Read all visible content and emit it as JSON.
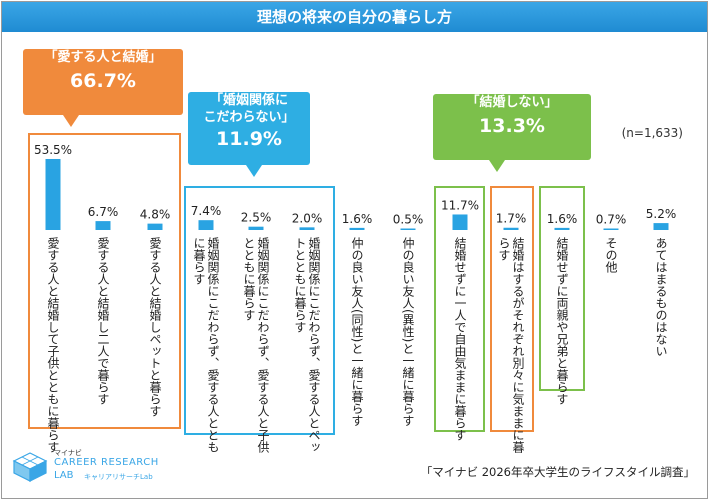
{
  "title": "理想の将来の自分の暮らし方",
  "n_label": "(n=1,633)",
  "source": "「マイナビ 2026年卒大学生のライフスタイル調査」",
  "colors": {
    "bar": "#29a3e2",
    "title_bg": "#2b98dc",
    "orange": "#f08a3c",
    "blue": "#2eaee3",
    "green": "#7cc04b"
  },
  "callouts": [
    {
      "label": "「愛する人と結婚」",
      "pct": "66.7%",
      "color": "orange"
    },
    {
      "label": "「婚姻関係に\nこだわらない」",
      "pct": "11.9%",
      "color": "blue"
    },
    {
      "label": "「結婚しない」",
      "pct": "13.3%",
      "color": "green"
    }
  ],
  "logo": {
    "top": "マイナビ",
    "main": "CAREER RESEARCH",
    "sub": "LAB",
    "sub2": "キャリアリサーチLab"
  },
  "chart_data": {
    "type": "bar",
    "title": "理想の将来の自分の暮らし方",
    "categories": [
      "愛する人と結婚して子供とともに暮らす",
      "愛する人と結婚し二人で暮らす",
      "愛する人と結婚しペットと暮らす",
      "婚姻関係にこだわらず、愛する人ととも\nに暮らす",
      "婚姻関係にこだわらず、愛する人と子供\nとともに暮らす",
      "婚姻関係にこだわらず、愛する人とペッ\nトとともに暮らす",
      "仲の良い友人(同性)と一緒に暮らす",
      "仲の良い友人(異性)と一緒に暮らす",
      "結婚せずに一人で自由気ままに暮らす",
      "結婚はするがそれぞれ別々に気ままに暮\nらす",
      "結婚せずに両親や兄弟と暮らす",
      "その他",
      "あてはまるものはない"
    ],
    "values": [
      53.5,
      6.7,
      4.8,
      7.4,
      2.5,
      2.0,
      1.6,
      0.5,
      11.7,
      1.7,
      1.6,
      0.7,
      5.2
    ],
    "value_labels": [
      "53.5%",
      "6.7%",
      "4.8%",
      "7.4%",
      "2.5%",
      "2.0%",
      "1.6%",
      "0.5%",
      "11.7%",
      "1.7%",
      "1.6%",
      "0.7%",
      "5.2%"
    ],
    "unit": "%",
    "groups": [
      {
        "name": "「愛する人と結婚」",
        "total": "66.7%",
        "indices": [
          0,
          1,
          2
        ],
        "color": "orange"
      },
      {
        "name": "「婚姻関係にこだわらない」",
        "total": "11.9%",
        "indices": [
          3,
          4,
          5
        ],
        "color": "blue"
      },
      {
        "name": "「結婚しない」",
        "total": "13.3%",
        "indices": [
          8,
          10
        ],
        "color": "green"
      },
      {
        "name": "",
        "total": "",
        "indices": [
          9
        ],
        "color": "orange"
      }
    ],
    "ylim": [
      0,
      55
    ],
    "grid": false,
    "legend": "none"
  }
}
